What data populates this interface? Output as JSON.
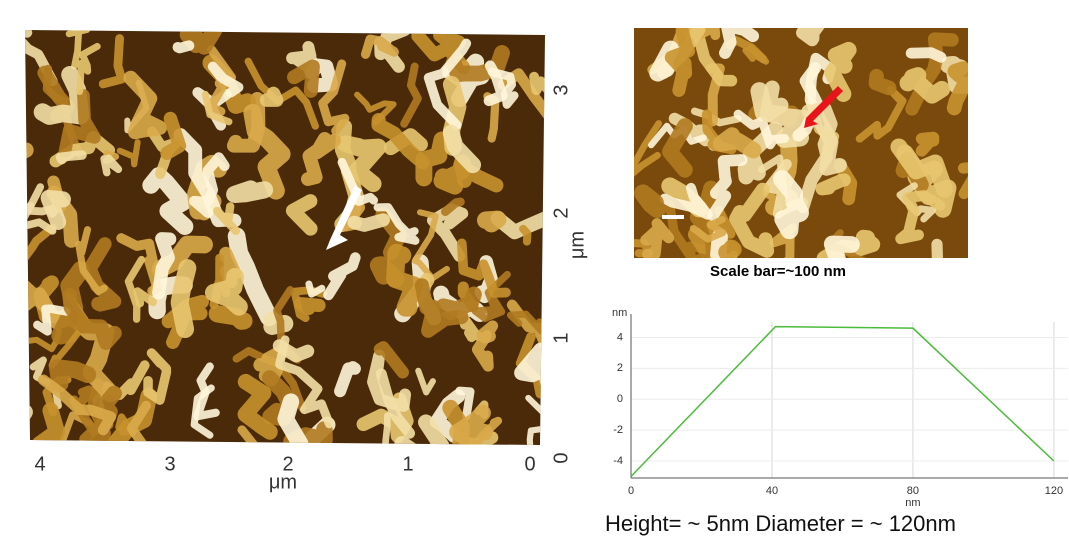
{
  "afm_3d": {
    "x_ticks": [
      4,
      3,
      2,
      1,
      0
    ],
    "x_label": "μm",
    "y_ticks": [
      0,
      1,
      2,
      3
    ],
    "y_label": "μm"
  },
  "afm_2d": {
    "caption": "Scale bar=~100 nm"
  },
  "chart_data": {
    "type": "line",
    "x_label": "nm",
    "y_label": "nm",
    "x": [
      0,
      41,
      80,
      120
    ],
    "series": [
      {
        "color": "#4cbb3c",
        "values": [
          -5,
          4.7,
          4.6,
          -4
        ]
      }
    ],
    "xlim": [
      0,
      124
    ],
    "ylim": [
      -5.1,
      5.0
    ],
    "xticks": [
      0,
      40,
      80,
      120
    ],
    "yticks": [
      -4,
      -2,
      0,
      2,
      4
    ],
    "grid": true
  },
  "caption": "Height= ~ 5nm Diameter = ~ 120nm"
}
